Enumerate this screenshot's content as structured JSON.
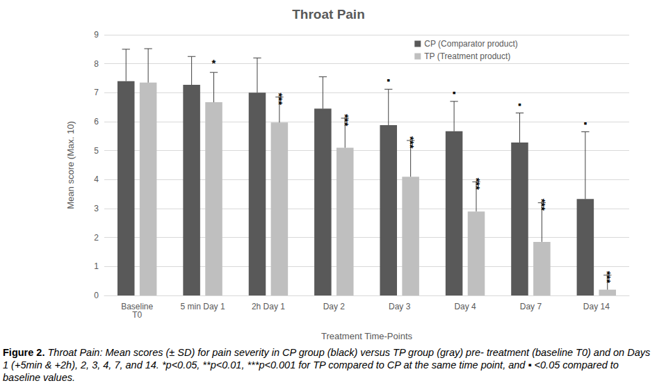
{
  "chart_data": {
    "type": "bar",
    "title": "Throat Pain",
    "x_label": "Treatment Time-Points",
    "y_label": "Mean score (Max. 10)",
    "categories": [
      "Baseline\nT0",
      "5 min Day 1",
      "2h Day 1",
      "Day 2",
      "Day 3",
      "Day 4",
      "Day 7",
      "Day 14"
    ],
    "series": [
      {
        "name": "CP (Comparator product)",
        "color": "#595959",
        "values": [
          7.4,
          7.27,
          7.0,
          6.45,
          5.88,
          5.67,
          5.28,
          3.33
        ],
        "sd": [
          1.1,
          0.98,
          1.2,
          1.1,
          1.24,
          1.03,
          1.02,
          2.32
        ],
        "annotations": [
          null,
          null,
          null,
          null,
          "▪",
          "▪",
          "▪",
          "▪"
        ]
      },
      {
        "name": "TP (Treatment product)",
        "color": "#bfbfbf",
        "values": [
          7.35,
          6.67,
          5.97,
          5.1,
          4.1,
          2.9,
          1.85,
          0.2
        ],
        "sd": [
          1.17,
          1.03,
          0.88,
          1.02,
          1.25,
          1.02,
          1.35,
          0.5
        ],
        "annotations": [
          null,
          "*",
          "***",
          "***",
          "***",
          "***",
          "***",
          "***"
        ]
      }
    ],
    "ylim": [
      0,
      9
    ],
    "yticks": [
      0,
      1,
      2,
      3,
      4,
      5,
      6,
      7,
      8,
      9
    ],
    "grid": true,
    "legend": "top-right",
    "caption_label": "Figure 2.",
    "caption": "Throat Pain: Mean scores (± SD) for pain severity in CP group (black) versus TP group (gray) pre- treatment (baseline T0) and on Days 1 (+5min & +2h), 2, 3, 4, 7, and 14. *p<0.05, **p<0.01, ***p<0.001 for TP compared to CP at the same time point, and ▪ <0.05 compared to baseline values."
  }
}
